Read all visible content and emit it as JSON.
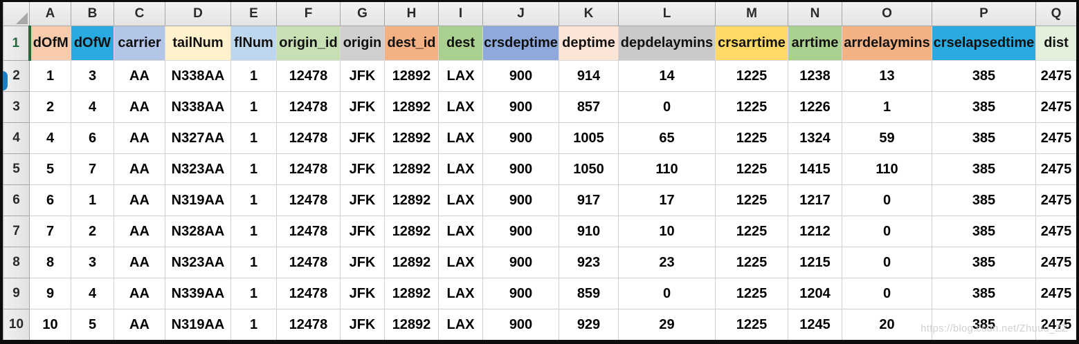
{
  "sheet": {
    "column_letters": [
      "A",
      "B",
      "C",
      "D",
      "E",
      "F",
      "G",
      "H",
      "I",
      "J",
      "K",
      "L",
      "M",
      "N",
      "O",
      "P",
      "Q"
    ],
    "row_numbers": [
      "1",
      "2",
      "3",
      "4",
      "5",
      "6",
      "7",
      "8",
      "9",
      "10"
    ],
    "fields": [
      {
        "label": "dOfM",
        "bg": "#F8CBAD"
      },
      {
        "label": "dOfW",
        "bg": "#29ABE2"
      },
      {
        "label": "carrier",
        "bg": "#B4C6E7"
      },
      {
        "label": "tailNum",
        "bg": "#FFF2CC"
      },
      {
        "label": "flNum",
        "bg": "#BDD7EE"
      },
      {
        "label": "origin_id",
        "bg": "#C6E0B4"
      },
      {
        "label": "origin",
        "bg": "#D0CECE"
      },
      {
        "label": "dest_id",
        "bg": "#F4B183"
      },
      {
        "label": "dest",
        "bg": "#A9D08E"
      },
      {
        "label": "crsdeptime",
        "bg": "#8EA9DB"
      },
      {
        "label": "deptime",
        "bg": "#FCE4D6"
      },
      {
        "label": "depdelaymins",
        "bg": "#C9C9C9"
      },
      {
        "label": "crsarrtime",
        "bg": "#FFD966"
      },
      {
        "label": "arrtime",
        "bg": "#A9D08E"
      },
      {
        "label": "arrdelaymins",
        "bg": "#F4B183"
      },
      {
        "label": "crselapsedtime",
        "bg": "#29ABE2"
      },
      {
        "label": "dist",
        "bg": "#E2EFDA"
      }
    ],
    "rows": [
      [
        "1",
        "3",
        "AA",
        "N338AA",
        "1",
        "12478",
        "JFK",
        "12892",
        "LAX",
        "900",
        "914",
        "14",
        "1225",
        "1238",
        "13",
        "385",
        "2475"
      ],
      [
        "2",
        "4",
        "AA",
        "N338AA",
        "1",
        "12478",
        "JFK",
        "12892",
        "LAX",
        "900",
        "857",
        "0",
        "1225",
        "1226",
        "1",
        "385",
        "2475"
      ],
      [
        "4",
        "6",
        "AA",
        "N327AA",
        "1",
        "12478",
        "JFK",
        "12892",
        "LAX",
        "900",
        "1005",
        "65",
        "1225",
        "1324",
        "59",
        "385",
        "2475"
      ],
      [
        "5",
        "7",
        "AA",
        "N323AA",
        "1",
        "12478",
        "JFK",
        "12892",
        "LAX",
        "900",
        "1050",
        "110",
        "1225",
        "1415",
        "110",
        "385",
        "2475"
      ],
      [
        "6",
        "1",
        "AA",
        "N319AA",
        "1",
        "12478",
        "JFK",
        "12892",
        "LAX",
        "900",
        "917",
        "17",
        "1225",
        "1217",
        "0",
        "385",
        "2475"
      ],
      [
        "7",
        "2",
        "AA",
        "N328AA",
        "1",
        "12478",
        "JFK",
        "12892",
        "LAX",
        "900",
        "910",
        "10",
        "1225",
        "1212",
        "0",
        "385",
        "2475"
      ],
      [
        "8",
        "3",
        "AA",
        "N323AA",
        "1",
        "12478",
        "JFK",
        "12892",
        "LAX",
        "900",
        "923",
        "23",
        "1225",
        "1215",
        "0",
        "385",
        "2475"
      ],
      [
        "9",
        "4",
        "AA",
        "N339AA",
        "1",
        "12478",
        "JFK",
        "12892",
        "LAX",
        "900",
        "859",
        "0",
        "1225",
        "1204",
        "0",
        "385",
        "2475"
      ],
      [
        "10",
        "5",
        "AA",
        "N319AA",
        "1",
        "12478",
        "JFK",
        "12892",
        "LAX",
        "900",
        "929",
        "29",
        "1225",
        "1245",
        "20",
        "385",
        "2475"
      ]
    ]
  },
  "colors": {
    "selected_row_accent": "#1F6B3C",
    "edge_marker": "#1B7FC4",
    "frame": "#0d0d0d",
    "gridline": "#cfcfcf"
  },
  "watermark": {
    "text": "https://blog.csdn.net/Zhuuu_ZZ"
  }
}
